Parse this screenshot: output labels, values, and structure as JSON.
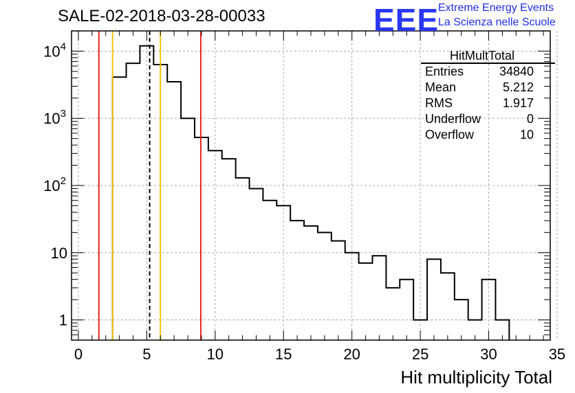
{
  "chart_data": {
    "type": "histogram",
    "title": "SALE-02-2018-03-28-00033",
    "xlabel": "Hit multiplicity Total",
    "ylabel": "",
    "yscale": "log",
    "xlim": [
      -0.5,
      34.5
    ],
    "ylim": [
      0.5,
      20000
    ],
    "grid": true,
    "bin_width": 1,
    "bins": [
      {
        "lo": 2.5,
        "count": 4100
      },
      {
        "lo": 3.5,
        "count": 6600
      },
      {
        "lo": 4.5,
        "count": 12000
      },
      {
        "lo": 5.5,
        "count": 6300
      },
      {
        "lo": 6.5,
        "count": 3500
      },
      {
        "lo": 7.5,
        "count": 1000
      },
      {
        "lo": 8.5,
        "count": 520
      },
      {
        "lo": 9.5,
        "count": 330
      },
      {
        "lo": 10.5,
        "count": 250
      },
      {
        "lo": 11.5,
        "count": 130
      },
      {
        "lo": 12.5,
        "count": 90
      },
      {
        "lo": 13.5,
        "count": 60
      },
      {
        "lo": 14.5,
        "count": 50
      },
      {
        "lo": 15.5,
        "count": 30
      },
      {
        "lo": 16.5,
        "count": 25
      },
      {
        "lo": 17.5,
        "count": 20
      },
      {
        "lo": 18.5,
        "count": 15
      },
      {
        "lo": 19.5,
        "count": 10
      },
      {
        "lo": 20.5,
        "count": 7
      },
      {
        "lo": 21.5,
        "count": 9
      },
      {
        "lo": 22.5,
        "count": 3
      },
      {
        "lo": 23.5,
        "count": 4
      },
      {
        "lo": 24.5,
        "count": 1
      },
      {
        "lo": 25.5,
        "count": 8
      },
      {
        "lo": 26.5,
        "count": 5
      },
      {
        "lo": 27.5,
        "count": 2
      },
      {
        "lo": 28.5,
        "count": 1
      },
      {
        "lo": 29.5,
        "count": 4
      },
      {
        "lo": 30.5,
        "count": 1
      }
    ],
    "vertical_lines": [
      {
        "x": 1.5,
        "color": "#e8201d",
        "style": "solid"
      },
      {
        "x": 2.5,
        "color": "#f2c40c",
        "style": "solid"
      },
      {
        "x": 5.212,
        "color": "#000000",
        "style": "dashed"
      },
      {
        "x": 6.0,
        "color": "#f2c40c",
        "style": "solid"
      },
      {
        "x": 8.95,
        "color": "#e8201d",
        "style": "solid"
      }
    ],
    "x_ticks": [
      {
        "value": 0,
        "label": "0"
      },
      {
        "value": 5,
        "label": "5"
      },
      {
        "value": 10,
        "label": "10"
      },
      {
        "value": 15,
        "label": "15"
      },
      {
        "value": 20,
        "label": "20"
      },
      {
        "value": 25,
        "label": "25"
      },
      {
        "value": 30,
        "label": "30"
      },
      {
        "value": 35,
        "label": "35"
      }
    ],
    "y_ticks": [
      {
        "value": 1,
        "base": "1",
        "exp": ""
      },
      {
        "value": 10,
        "base": "10",
        "exp": ""
      },
      {
        "value": 100,
        "base": "10",
        "exp": "2"
      },
      {
        "value": 1000,
        "base": "10",
        "exp": "3"
      },
      {
        "value": 10000,
        "base": "10",
        "exp": "4"
      }
    ]
  },
  "stats_box": {
    "title": "HitMultTotal",
    "rows": [
      {
        "label": "Entries",
        "value": "34840"
      },
      {
        "label": "Mean",
        "value": "5.212"
      },
      {
        "label": "RMS",
        "value": "1.917"
      },
      {
        "label": "Underflow",
        "value": "0"
      },
      {
        "label": "Overflow",
        "value": "10"
      }
    ]
  },
  "logo": {
    "mark": "EEE",
    "line1": "Extreme Energy Events",
    "line2": "La Scienza nelle Scuole",
    "color": "#2a37f0"
  }
}
